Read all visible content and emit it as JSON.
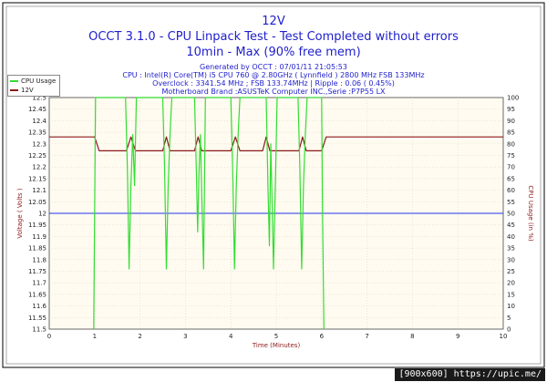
{
  "chart_data": {
    "type": "line",
    "title": "12V",
    "subtitle": "OCCT 3.1.0 - CPU Linpack Test - Test Completed without errors",
    "subtitle2": "10min - Max (90% free mem)",
    "info_lines": [
      "Generated by OCCT : 07/01/11 21:05:53",
      "CPU : Intel(R) Core(TM) i5 CPU 760 @ 2.80GHz ( Lynnfield ) 2800 MHz FSB 133MHz",
      "Overclock : 3341.54 MHz ; FSB 133.74MHz | Ripple : 0.06 ( 0.45%)",
      "Motherboard Brand :ASUSTeK Computer INC.,Serie :P7P55 LX"
    ],
    "xlabel": "Time (Minutes)",
    "ylabel_left": "Voltage ( Volts )",
    "ylabel_right": "CPU Usage (in %)",
    "xlim": [
      0,
      10
    ],
    "xticks": [
      "0",
      "1",
      "2",
      "3",
      "4",
      "5",
      "6",
      "7",
      "8",
      "9",
      "10"
    ],
    "ylim_left": [
      11.5,
      12.5
    ],
    "yticks_left": [
      "11.5",
      "11.55",
      "11.6",
      "11.65",
      "11.7",
      "11.75",
      "11.8",
      "11.85",
      "11.9",
      "11.95",
      "12",
      "12.05",
      "12.1",
      "12.15",
      "12.2",
      "12.25",
      "12.3",
      "12.35",
      "12.4",
      "12.45",
      "12.5"
    ],
    "ylim_right": [
      0,
      100
    ],
    "yticks_right": [
      "0",
      "5",
      "10",
      "15",
      "20",
      "25",
      "30",
      "35",
      "40",
      "45",
      "50",
      "55",
      "60",
      "65",
      "70",
      "75",
      "80",
      "85",
      "90",
      "95",
      "100"
    ],
    "reference_line": {
      "axis": "left",
      "value": 12.0,
      "color": "#2233ee"
    },
    "legend": {
      "position": "top-left",
      "entries": [
        "CPU Usage",
        "12V"
      ]
    },
    "series": [
      {
        "name": "12V",
        "axis": "left",
        "color": "#8b1a1a",
        "x": [
          0,
          1.0,
          1.1,
          1.2,
          1.7,
          1.8,
          1.9,
          2.5,
          2.58,
          2.66,
          3.2,
          3.28,
          3.36,
          4.0,
          4.1,
          4.2,
          4.7,
          4.78,
          4.86,
          5.5,
          5.58,
          5.66,
          6.0,
          6.1,
          6.2,
          10
        ],
        "values": [
          12.33,
          12.33,
          12.27,
          12.27,
          12.27,
          12.33,
          12.27,
          12.27,
          12.33,
          12.27,
          12.27,
          12.33,
          12.27,
          12.27,
          12.33,
          12.27,
          12.27,
          12.33,
          12.27,
          12.27,
          12.33,
          12.27,
          12.27,
          12.33,
          12.33,
          12.33
        ]
      },
      {
        "name": "CPU Usage",
        "axis": "right",
        "color": "#33dd33",
        "x": [
          0.98,
          1.02,
          1.1,
          1.68,
          1.72,
          1.76,
          1.8,
          1.84,
          1.88,
          1.92,
          2.5,
          2.54,
          2.58,
          2.62,
          2.66,
          2.7,
          3.2,
          3.24,
          3.27,
          3.3,
          3.33,
          3.36,
          3.4,
          3.44,
          4.0,
          4.04,
          4.08,
          4.12,
          4.16,
          4.2,
          4.78,
          4.82,
          4.85,
          4.88,
          4.91,
          4.94,
          4.98,
          5.02,
          5.48,
          5.52,
          5.56,
          5.6,
          5.64,
          5.68,
          6.0,
          6.02,
          6.05
        ],
        "values": [
          0,
          100,
          100,
          100,
          70,
          26,
          62,
          84,
          62,
          100,
          100,
          70,
          26,
          62,
          84,
          100,
          100,
          68,
          42,
          68,
          84,
          58,
          26,
          100,
          100,
          70,
          26,
          62,
          84,
          100,
          100,
          60,
          36,
          80,
          54,
          26,
          62,
          100,
          100,
          70,
          26,
          62,
          84,
          100,
          100,
          50,
          0
        ]
      }
    ]
  },
  "legend_labels": {
    "cpu": "CPU Usage",
    "volt": "12V"
  },
  "footer": {
    "text": "[900x600] https://upic.me/"
  }
}
